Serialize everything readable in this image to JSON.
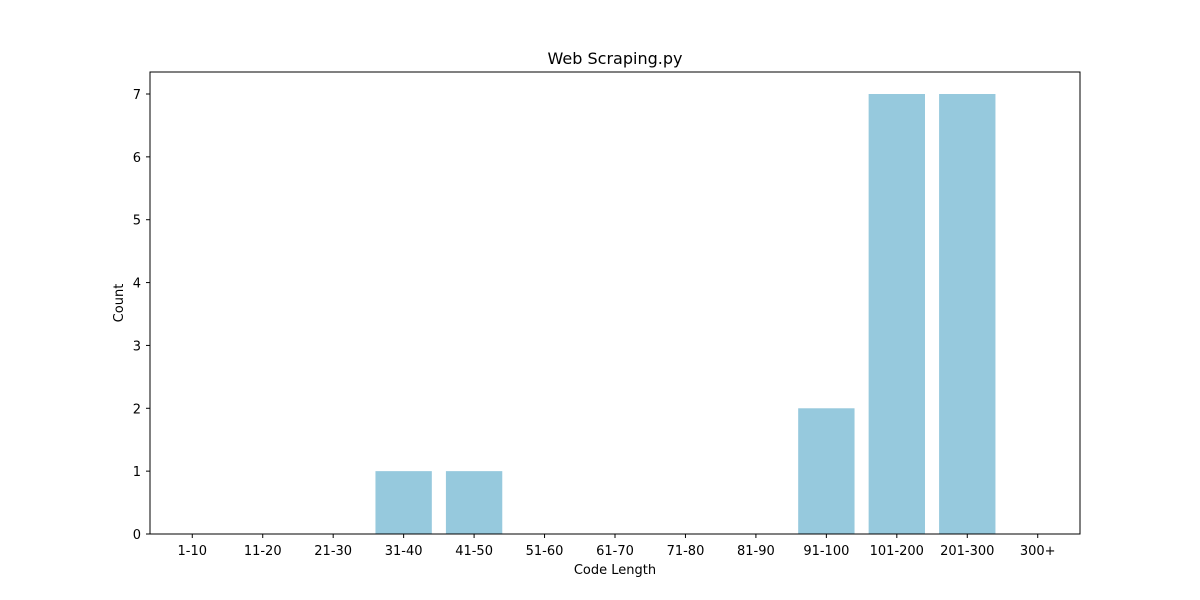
{
  "chart_data": {
    "type": "bar",
    "title": "Web Scraping.py",
    "xlabel": "Code Length",
    "ylabel": "Count",
    "categories": [
      "1-10",
      "11-20",
      "21-30",
      "31-40",
      "41-50",
      "51-60",
      "61-70",
      "71-80",
      "81-90",
      "91-100",
      "101-200",
      "201-300",
      "300+"
    ],
    "values": [
      0,
      0,
      0,
      1,
      1,
      0,
      0,
      0,
      0,
      2,
      7,
      7,
      0
    ],
    "ylim": [
      0,
      7.35
    ],
    "yticks": [
      0,
      1,
      2,
      3,
      4,
      5,
      6,
      7
    ],
    "bar_color": "#96c9dd",
    "grid": false,
    "legend": "none"
  }
}
